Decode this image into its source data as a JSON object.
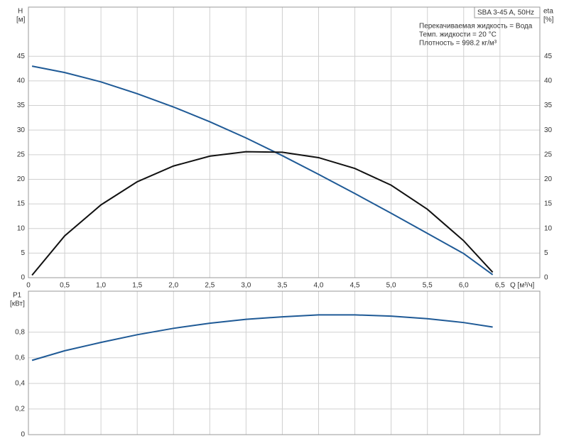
{
  "chart_data": [
    {
      "type": "line",
      "title": "SBA 3-45 A, 50Hz",
      "notes": [
        "Перекачиваемая жидкость = Вода",
        "Темп. жидкости = 20 °C",
        "Плотность = 998.2 кг/м³"
      ],
      "ylabel": "H",
      "yunit": "[м]",
      "y2label": "eta",
      "y2unit": "[%]",
      "xlabel": "Q [м³/ч]",
      "x": [
        0.05,
        0.5,
        1.0,
        1.5,
        2.0,
        2.5,
        3.0,
        3.5,
        4.0,
        4.5,
        5.0,
        5.5,
        6.0,
        6.4
      ],
      "xlim": [
        0,
        7.05
      ],
      "xticks": [
        0,
        {
          "value": 0.5,
          "label": "0,5"
        },
        {
          "value": 1.0,
          "label": "1,0"
        },
        {
          "value": 1.5,
          "label": "1,5"
        },
        {
          "value": 2.0,
          "label": "2,0"
        },
        {
          "value": 2.5,
          "label": "2,5"
        },
        {
          "value": 3.0,
          "label": "3,0"
        },
        {
          "value": 3.5,
          "label": "3,5"
        },
        {
          "value": 4.0,
          "label": "4,0"
        },
        {
          "value": 4.5,
          "label": "4,5"
        },
        {
          "value": 5.0,
          "label": "5,0"
        },
        {
          "value": 5.5,
          "label": "5,5"
        },
        {
          "value": 6.0,
          "label": "6,0"
        },
        {
          "value": 6.5,
          "label": "6,5"
        }
      ],
      "ylim": [
        0,
        55
      ],
      "yticks": [
        0,
        5,
        10,
        15,
        20,
        25,
        30,
        35,
        40,
        45
      ],
      "y2lim": [
        0,
        55
      ],
      "y2ticks": [
        0,
        5,
        10,
        15,
        20,
        25,
        30,
        35,
        40,
        45
      ],
      "grid": true,
      "series": [
        {
          "color": "#1f5a96",
          "values": [
            43.0,
            41.7,
            39.8,
            37.4,
            34.7,
            31.7,
            28.4,
            24.8,
            21.0,
            17.1,
            13.1,
            9.0,
            4.9,
            0.6
          ]
        },
        {
          "color": "#111111",
          "axis": "y2",
          "values": [
            0.5,
            8.5,
            14.8,
            19.5,
            22.7,
            24.7,
            25.6,
            25.5,
            24.4,
            22.2,
            18.8,
            13.9,
            7.5,
            1.1
          ]
        }
      ]
    },
    {
      "type": "line",
      "ylabel": "P1",
      "yunit": "[кВт]",
      "x": [
        0.05,
        0.5,
        1.0,
        1.5,
        2.0,
        2.5,
        3.0,
        3.5,
        4.0,
        4.5,
        5.0,
        5.5,
        6.0,
        6.4
      ],
      "xlim": [
        0,
        7.05
      ],
      "ylim": [
        0,
        1.12
      ],
      "yticks": [
        0,
        {
          "value": 0.2,
          "label": "0,2"
        },
        {
          "value": 0.4,
          "label": "0,4"
        },
        {
          "value": 0.6,
          "label": "0,6"
        },
        {
          "value": 0.8,
          "label": "0,8"
        }
      ],
      "grid": true,
      "series": [
        {
          "color": "#1f5a96",
          "values": [
            0.58,
            0.655,
            0.72,
            0.78,
            0.83,
            0.87,
            0.9,
            0.92,
            0.935,
            0.935,
            0.925,
            0.905,
            0.875,
            0.84
          ]
        }
      ]
    }
  ]
}
